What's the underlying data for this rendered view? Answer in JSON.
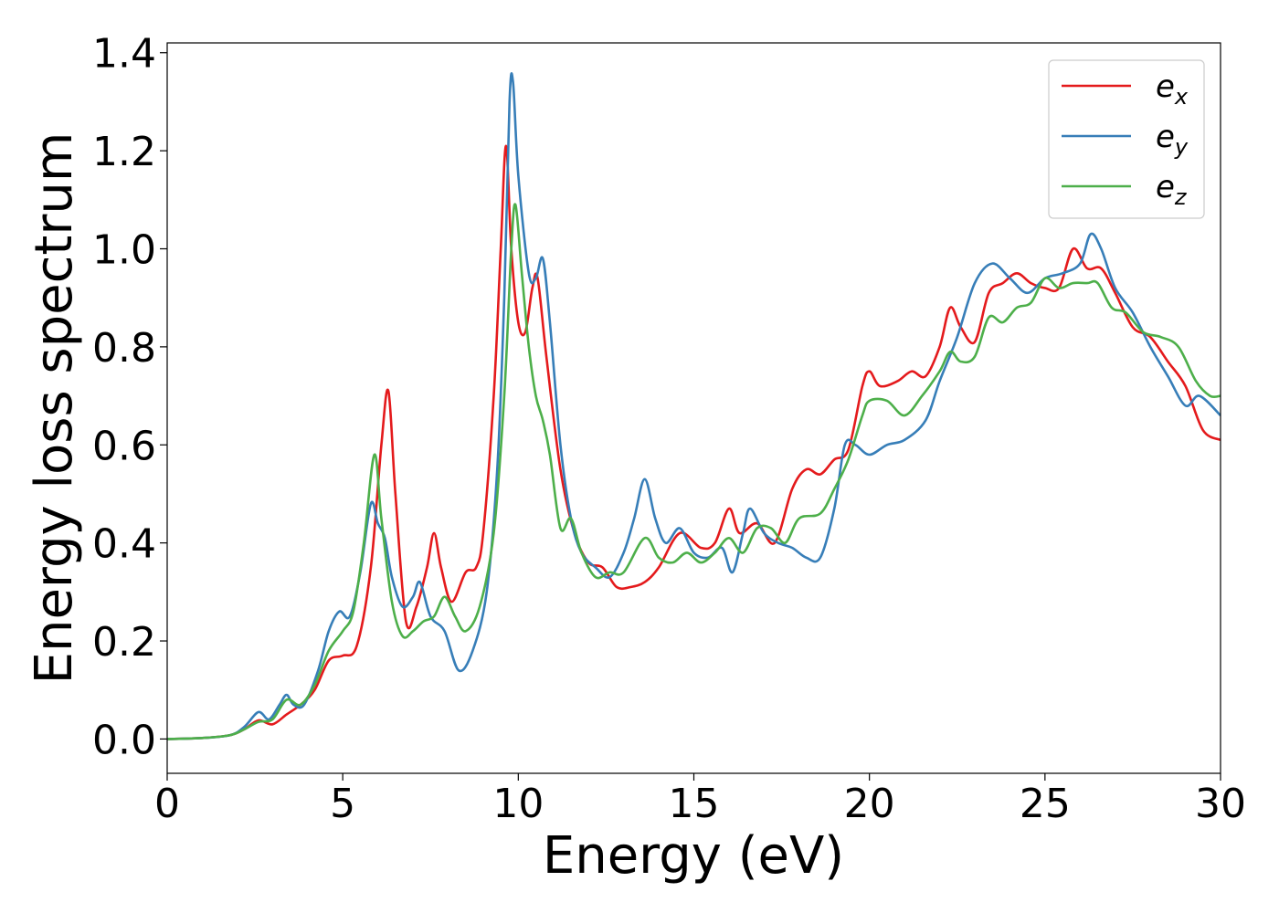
{
  "chart_data": {
    "type": "line",
    "title": "",
    "xlabel": "Energy (eV)",
    "ylabel": "Energy loss spectrum",
    "xlim": [
      0,
      30
    ],
    "ylim": [
      -0.07,
      1.42
    ],
    "xticks": [
      0,
      5,
      10,
      15,
      20,
      25,
      30
    ],
    "yticks": [
      "0.0",
      "0.2",
      "0.4",
      "0.6",
      "0.8",
      "1.0",
      "1.2",
      "1.4"
    ],
    "grid": false,
    "legend_position": "top-right",
    "series": [
      {
        "name": "e_x",
        "label_base": "e",
        "label_sub": "x",
        "color": "#e41a1c",
        "points": [
          [
            0,
            0
          ],
          [
            1,
            0.002
          ],
          [
            1.8,
            0.008
          ],
          [
            2.2,
            0.02
          ],
          [
            2.6,
            0.038
          ],
          [
            3.0,
            0.03
          ],
          [
            3.4,
            0.05
          ],
          [
            3.8,
            0.07
          ],
          [
            4.2,
            0.1
          ],
          [
            4.6,
            0.16
          ],
          [
            5.0,
            0.17
          ],
          [
            5.4,
            0.19
          ],
          [
            5.8,
            0.35
          ],
          [
            6.1,
            0.6
          ],
          [
            6.3,
            0.71
          ],
          [
            6.5,
            0.5
          ],
          [
            6.8,
            0.24
          ],
          [
            7.1,
            0.27
          ],
          [
            7.4,
            0.35
          ],
          [
            7.6,
            0.42
          ],
          [
            7.8,
            0.35
          ],
          [
            8.1,
            0.28
          ],
          [
            8.5,
            0.34
          ],
          [
            8.8,
            0.35
          ],
          [
            9.0,
            0.42
          ],
          [
            9.3,
            0.7
          ],
          [
            9.5,
            1.0
          ],
          [
            9.65,
            1.21
          ],
          [
            9.8,
            1.0
          ],
          [
            10.0,
            0.85
          ],
          [
            10.2,
            0.83
          ],
          [
            10.4,
            0.92
          ],
          [
            10.55,
            0.94
          ],
          [
            10.8,
            0.78
          ],
          [
            11.2,
            0.55
          ],
          [
            11.6,
            0.42
          ],
          [
            12.0,
            0.36
          ],
          [
            12.4,
            0.35
          ],
          [
            12.8,
            0.31
          ],
          [
            13.2,
            0.31
          ],
          [
            13.6,
            0.32
          ],
          [
            14.0,
            0.35
          ],
          [
            14.6,
            0.42
          ],
          [
            15.2,
            0.39
          ],
          [
            15.6,
            0.4
          ],
          [
            16.0,
            0.47
          ],
          [
            16.3,
            0.42
          ],
          [
            16.8,
            0.44
          ],
          [
            17.3,
            0.4
          ],
          [
            17.8,
            0.51
          ],
          [
            18.2,
            0.55
          ],
          [
            18.6,
            0.54
          ],
          [
            19.0,
            0.57
          ],
          [
            19.4,
            0.59
          ],
          [
            19.8,
            0.72
          ],
          [
            20.0,
            0.75
          ],
          [
            20.3,
            0.72
          ],
          [
            20.8,
            0.73
          ],
          [
            21.2,
            0.75
          ],
          [
            21.6,
            0.74
          ],
          [
            22.0,
            0.8
          ],
          [
            22.3,
            0.88
          ],
          [
            22.6,
            0.84
          ],
          [
            23.0,
            0.81
          ],
          [
            23.4,
            0.91
          ],
          [
            23.8,
            0.93
          ],
          [
            24.2,
            0.95
          ],
          [
            24.6,
            0.93
          ],
          [
            25.0,
            0.92
          ],
          [
            25.4,
            0.92
          ],
          [
            25.8,
            1.0
          ],
          [
            26.2,
            0.96
          ],
          [
            26.6,
            0.96
          ],
          [
            27.0,
            0.91
          ],
          [
            27.5,
            0.84
          ],
          [
            28.0,
            0.82
          ],
          [
            28.5,
            0.77
          ],
          [
            29.0,
            0.72
          ],
          [
            29.5,
            0.63
          ],
          [
            30,
            0.61
          ]
        ]
      },
      {
        "name": "e_y",
        "label_base": "e",
        "label_sub": "y",
        "color": "#377eb8",
        "points": [
          [
            0,
            0
          ],
          [
            1,
            0.002
          ],
          [
            1.8,
            0.008
          ],
          [
            2.2,
            0.025
          ],
          [
            2.6,
            0.055
          ],
          [
            2.9,
            0.04
          ],
          [
            3.2,
            0.07
          ],
          [
            3.4,
            0.09
          ],
          [
            3.6,
            0.07
          ],
          [
            3.9,
            0.07
          ],
          [
            4.3,
            0.14
          ],
          [
            4.6,
            0.22
          ],
          [
            4.9,
            0.26
          ],
          [
            5.2,
            0.25
          ],
          [
            5.5,
            0.34
          ],
          [
            5.8,
            0.48
          ],
          [
            6.0,
            0.44
          ],
          [
            6.2,
            0.41
          ],
          [
            6.4,
            0.33
          ],
          [
            6.7,
            0.27
          ],
          [
            7.0,
            0.29
          ],
          [
            7.2,
            0.32
          ],
          [
            7.5,
            0.25
          ],
          [
            7.9,
            0.22
          ],
          [
            8.3,
            0.14
          ],
          [
            8.7,
            0.18
          ],
          [
            9.1,
            0.3
          ],
          [
            9.4,
            0.55
          ],
          [
            9.6,
            0.9
          ],
          [
            9.75,
            1.3
          ],
          [
            9.85,
            1.34
          ],
          [
            10.0,
            1.15
          ],
          [
            10.3,
            0.95
          ],
          [
            10.5,
            0.94
          ],
          [
            10.7,
            0.98
          ],
          [
            10.9,
            0.85
          ],
          [
            11.2,
            0.6
          ],
          [
            11.5,
            0.45
          ],
          [
            11.8,
            0.38
          ],
          [
            12.2,
            0.35
          ],
          [
            12.6,
            0.33
          ],
          [
            13.0,
            0.38
          ],
          [
            13.3,
            0.45
          ],
          [
            13.6,
            0.53
          ],
          [
            13.9,
            0.45
          ],
          [
            14.2,
            0.4
          ],
          [
            14.6,
            0.43
          ],
          [
            15.0,
            0.38
          ],
          [
            15.4,
            0.37
          ],
          [
            15.8,
            0.39
          ],
          [
            16.1,
            0.34
          ],
          [
            16.4,
            0.42
          ],
          [
            16.6,
            0.47
          ],
          [
            17.0,
            0.42
          ],
          [
            17.4,
            0.4
          ],
          [
            17.8,
            0.39
          ],
          [
            18.2,
            0.37
          ],
          [
            18.6,
            0.37
          ],
          [
            19.0,
            0.47
          ],
          [
            19.3,
            0.6
          ],
          [
            19.6,
            0.6
          ],
          [
            20.0,
            0.58
          ],
          [
            20.5,
            0.6
          ],
          [
            21.0,
            0.61
          ],
          [
            21.6,
            0.65
          ],
          [
            22.0,
            0.73
          ],
          [
            22.5,
            0.82
          ],
          [
            23.0,
            0.93
          ],
          [
            23.5,
            0.97
          ],
          [
            24.0,
            0.94
          ],
          [
            24.5,
            0.91
          ],
          [
            25.0,
            0.94
          ],
          [
            25.5,
            0.95
          ],
          [
            26.0,
            0.97
          ],
          [
            26.3,
            1.03
          ],
          [
            26.6,
            1.0
          ],
          [
            27.0,
            0.92
          ],
          [
            27.5,
            0.87
          ],
          [
            28.0,
            0.8
          ],
          [
            28.5,
            0.74
          ],
          [
            29.0,
            0.68
          ],
          [
            29.4,
            0.7
          ],
          [
            30,
            0.66
          ]
        ]
      },
      {
        "name": "e_z",
        "label_base": "e",
        "label_sub": "z",
        "color": "#4daf4a",
        "points": [
          [
            0,
            0
          ],
          [
            1,
            0.002
          ],
          [
            1.8,
            0.008
          ],
          [
            2.2,
            0.02
          ],
          [
            2.6,
            0.035
          ],
          [
            3.0,
            0.04
          ],
          [
            3.4,
            0.08
          ],
          [
            3.8,
            0.07
          ],
          [
            4.2,
            0.11
          ],
          [
            4.6,
            0.18
          ],
          [
            5.0,
            0.22
          ],
          [
            5.3,
            0.26
          ],
          [
            5.6,
            0.4
          ],
          [
            5.9,
            0.58
          ],
          [
            6.1,
            0.45
          ],
          [
            6.4,
            0.28
          ],
          [
            6.7,
            0.21
          ],
          [
            7.0,
            0.22
          ],
          [
            7.3,
            0.24
          ],
          [
            7.6,
            0.25
          ],
          [
            7.9,
            0.29
          ],
          [
            8.2,
            0.25
          ],
          [
            8.5,
            0.22
          ],
          [
            8.9,
            0.27
          ],
          [
            9.3,
            0.42
          ],
          [
            9.6,
            0.7
          ],
          [
            9.8,
            1.0
          ],
          [
            9.92,
            1.09
          ],
          [
            10.1,
            0.95
          ],
          [
            10.3,
            0.8
          ],
          [
            10.5,
            0.7
          ],
          [
            10.7,
            0.65
          ],
          [
            10.9,
            0.58
          ],
          [
            11.2,
            0.43
          ],
          [
            11.5,
            0.45
          ],
          [
            11.8,
            0.38
          ],
          [
            12.2,
            0.33
          ],
          [
            12.6,
            0.34
          ],
          [
            13.0,
            0.34
          ],
          [
            13.6,
            0.41
          ],
          [
            14.0,
            0.37
          ],
          [
            14.4,
            0.36
          ],
          [
            14.8,
            0.38
          ],
          [
            15.2,
            0.36
          ],
          [
            15.6,
            0.38
          ],
          [
            16.0,
            0.41
          ],
          [
            16.4,
            0.38
          ],
          [
            16.8,
            0.43
          ],
          [
            17.2,
            0.43
          ],
          [
            17.6,
            0.4
          ],
          [
            18.0,
            0.45
          ],
          [
            18.6,
            0.46
          ],
          [
            19.0,
            0.51
          ],
          [
            19.4,
            0.57
          ],
          [
            19.8,
            0.66
          ],
          [
            20.0,
            0.69
          ],
          [
            20.5,
            0.69
          ],
          [
            21.0,
            0.66
          ],
          [
            21.5,
            0.7
          ],
          [
            22.0,
            0.75
          ],
          [
            22.3,
            0.79
          ],
          [
            22.6,
            0.77
          ],
          [
            23.0,
            0.78
          ],
          [
            23.4,
            0.86
          ],
          [
            23.8,
            0.85
          ],
          [
            24.2,
            0.88
          ],
          [
            24.6,
            0.89
          ],
          [
            25.0,
            0.94
          ],
          [
            25.4,
            0.92
          ],
          [
            25.8,
            0.93
          ],
          [
            26.2,
            0.93
          ],
          [
            26.5,
            0.93
          ],
          [
            26.9,
            0.88
          ],
          [
            27.3,
            0.87
          ],
          [
            27.8,
            0.83
          ],
          [
            28.3,
            0.82
          ],
          [
            28.8,
            0.8
          ],
          [
            29.3,
            0.73
          ],
          [
            29.7,
            0.7
          ],
          [
            30,
            0.7
          ]
        ]
      }
    ]
  }
}
